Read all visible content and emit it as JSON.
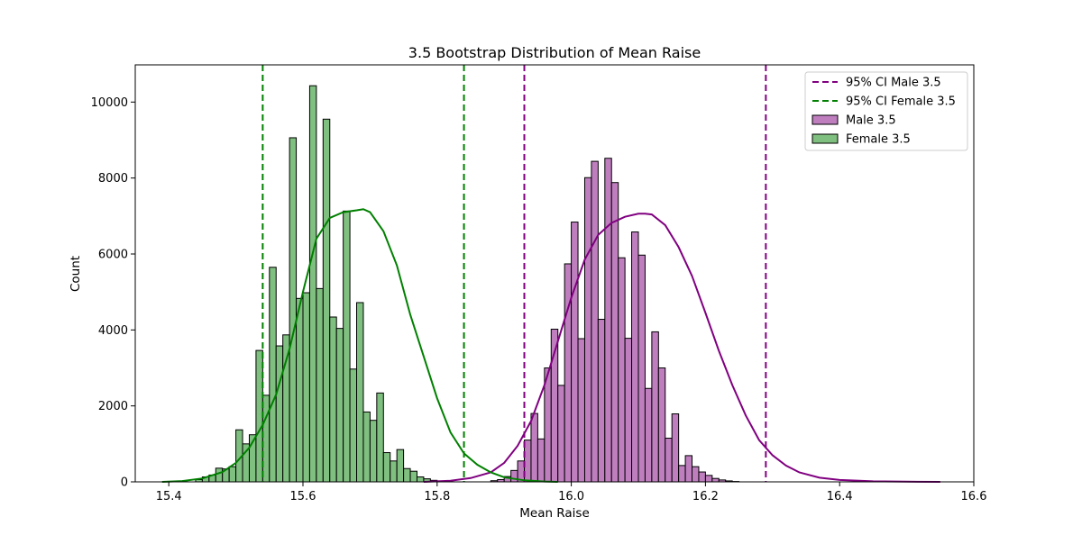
{
  "chart_data": {
    "type": "bar",
    "title": "3.5 Bootstrap Distribution of Mean Raise",
    "xlabel": "Mean Raise",
    "ylabel": "Count",
    "xlim": [
      15.35,
      16.6
    ],
    "ylim": [
      0,
      10980
    ],
    "x_ticks": [
      15.4,
      15.6,
      15.8,
      16.0,
      16.2,
      16.4,
      16.6
    ],
    "x_tick_labels": [
      "15.4",
      "15.6",
      "15.8",
      "16.0",
      "16.2",
      "16.4",
      "16.6"
    ],
    "y_ticks": [
      0,
      2000,
      4000,
      6000,
      8000,
      10000
    ],
    "y_tick_labels": [
      "0",
      "2000",
      "4000",
      "6000",
      "8000",
      "10000"
    ],
    "bin_width": 0.01,
    "legend_position": "top-right",
    "grid": false,
    "series": [
      {
        "name": "Male 3.5",
        "kind": "histogram",
        "color": "#800080",
        "fill_color": "#bf7fbf",
        "bin_start": 15.88,
        "counts": [
          30,
          60,
          140,
          300,
          550,
          1100,
          1800,
          1130,
          3000,
          4020,
          2540,
          5740,
          6840,
          3770,
          8010,
          8440,
          4280,
          8520,
          7880,
          5900,
          3780,
          6580,
          5970,
          2460,
          3950,
          3000,
          1150,
          1790,
          430,
          690,
          400,
          260,
          170,
          90,
          50,
          25,
          10
        ]
      },
      {
        "name": "Female 3.5",
        "kind": "histogram",
        "color": "#008000",
        "fill_color": "#7fbf7f",
        "bin_start": 15.44,
        "counts": [
          60,
          130,
          180,
          360,
          340,
          400,
          1370,
          1000,
          1240,
          3460,
          2280,
          5650,
          3580,
          3870,
          9060,
          4830,
          4980,
          10430,
          5090,
          9550,
          4340,
          4040,
          7130,
          2970,
          4720,
          1840,
          1620,
          2340,
          770,
          550,
          850,
          350,
          280,
          130,
          80,
          40,
          20
        ]
      }
    ],
    "kde": [
      {
        "name": "Male 3.5",
        "color": "#800080",
        "x": [
          15.78,
          15.82,
          15.85,
          15.88,
          15.9,
          15.92,
          15.94,
          15.96,
          15.98,
          16.0,
          16.02,
          16.04,
          16.06,
          16.08,
          16.1,
          16.11,
          16.12,
          16.14,
          16.16,
          16.18,
          16.2,
          16.22,
          16.24,
          16.26,
          16.28,
          16.3,
          16.32,
          16.34,
          16.37,
          16.4,
          16.45,
          16.5,
          16.55
        ],
        "y": [
          0,
          30,
          100,
          250,
          500,
          950,
          1600,
          2550,
          3700,
          4850,
          5850,
          6500,
          6820,
          6980,
          7060,
          7060,
          7040,
          6760,
          6180,
          5420,
          4450,
          3450,
          2550,
          1750,
          1100,
          700,
          430,
          250,
          110,
          50,
          15,
          5,
          0
        ]
      },
      {
        "name": "Female 3.5",
        "color": "#008000",
        "x": [
          15.39,
          15.42,
          15.45,
          15.48,
          15.5,
          15.52,
          15.54,
          15.56,
          15.58,
          15.6,
          15.62,
          15.64,
          15.66,
          15.68,
          15.69,
          15.7,
          15.72,
          15.74,
          15.76,
          15.78,
          15.8,
          15.82,
          15.84,
          15.86,
          15.88,
          15.9,
          15.93,
          15.96,
          15.98
        ],
        "y": [
          0,
          20,
          90,
          260,
          500,
          900,
          1500,
          2300,
          3500,
          5000,
          6400,
          6950,
          7100,
          7150,
          7180,
          7100,
          6600,
          5700,
          4400,
          3300,
          2200,
          1300,
          750,
          450,
          250,
          120,
          40,
          10,
          0
        ]
      }
    ],
    "ci_lines": [
      {
        "name": "95% CI Male 3.5",
        "color": "#800080",
        "values": [
          15.93,
          16.29
        ]
      },
      {
        "name": "95% CI Female 3.5",
        "color": "#008000",
        "values": [
          15.54,
          15.84
        ]
      }
    ],
    "legend": [
      {
        "label": "95% CI Male 3.5",
        "kind": "dashed-line",
        "color": "#800080"
      },
      {
        "label": "95% CI Female 3.5",
        "kind": "dashed-line",
        "color": "#008000"
      },
      {
        "label": "Male 3.5",
        "kind": "patch",
        "color": "#bf7fbf",
        "edge": "#000000"
      },
      {
        "label": "Female 3.5",
        "kind": "patch",
        "color": "#7fbf7f",
        "edge": "#000000"
      }
    ]
  }
}
